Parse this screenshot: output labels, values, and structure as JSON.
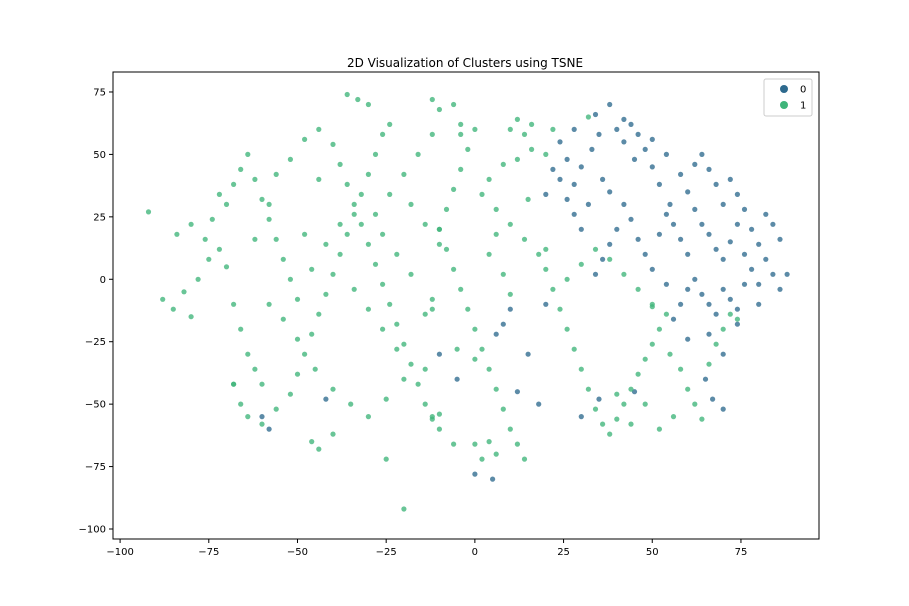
{
  "chart_data": {
    "type": "scatter",
    "title": "2D Visualization of Clusters using TSNE",
    "xlabel": "",
    "ylabel": "",
    "xlim": [
      -102,
      97
    ],
    "ylim": [
      -104,
      83
    ],
    "x_ticks": [
      -100,
      -75,
      -50,
      -25,
      0,
      25,
      50,
      75
    ],
    "y_ticks": [
      -100,
      -75,
      -50,
      -25,
      0,
      25,
      50,
      75
    ],
    "grid": false,
    "legend_position": "top-right",
    "series": [
      {
        "name": "0",
        "color": "#2e6a8e",
        "points": [
          [
            30,
            45
          ],
          [
            33,
            52
          ],
          [
            36,
            40
          ],
          [
            28,
            38
          ],
          [
            40,
            60
          ],
          [
            42,
            55
          ],
          [
            45,
            48
          ],
          [
            38,
            35
          ],
          [
            32,
            30
          ],
          [
            26,
            48
          ],
          [
            35,
            58
          ],
          [
            44,
            62
          ],
          [
            48,
            52
          ],
          [
            50,
            45
          ],
          [
            52,
            38
          ],
          [
            55,
            30
          ],
          [
            58,
            42
          ],
          [
            60,
            35
          ],
          [
            62,
            28
          ],
          [
            64,
            22
          ],
          [
            66,
            18
          ],
          [
            68,
            12
          ],
          [
            70,
            8
          ],
          [
            72,
            15
          ],
          [
            74,
            22
          ],
          [
            76,
            28
          ],
          [
            78,
            20
          ],
          [
            80,
            14
          ],
          [
            82,
            8
          ],
          [
            84,
            2
          ],
          [
            70,
            30
          ],
          [
            68,
            38
          ],
          [
            66,
            44
          ],
          [
            64,
            50
          ],
          [
            62,
            46
          ],
          [
            72,
            40
          ],
          [
            74,
            34
          ],
          [
            76,
            10
          ],
          [
            78,
            4
          ],
          [
            80,
            -2
          ],
          [
            60,
            10
          ],
          [
            58,
            16
          ],
          [
            56,
            22
          ],
          [
            54,
            26
          ],
          [
            52,
            18
          ],
          [
            62,
            0
          ],
          [
            64,
            -6
          ],
          [
            66,
            -10
          ],
          [
            68,
            -14
          ],
          [
            70,
            -4
          ],
          [
            72,
            -8
          ],
          [
            74,
            -12
          ],
          [
            76,
            -2
          ],
          [
            60,
            -4
          ],
          [
            58,
            -10
          ],
          [
            56,
            -16
          ],
          [
            54,
            -2
          ],
          [
            50,
            4
          ],
          [
            48,
            10
          ],
          [
            46,
            16
          ],
          [
            44,
            24
          ],
          [
            42,
            30
          ],
          [
            40,
            20
          ],
          [
            38,
            14
          ],
          [
            36,
            8
          ],
          [
            34,
            2
          ],
          [
            30,
            20
          ],
          [
            28,
            26
          ],
          [
            26,
            32
          ],
          [
            24,
            40
          ],
          [
            22,
            44
          ],
          [
            20,
            34
          ],
          [
            24,
            55
          ],
          [
            28,
            60
          ],
          [
            34,
            66
          ],
          [
            38,
            70
          ],
          [
            42,
            64
          ],
          [
            46,
            58
          ],
          [
            50,
            56
          ],
          [
            54,
            50
          ],
          [
            86,
            16
          ],
          [
            84,
            22
          ],
          [
            82,
            26
          ],
          [
            88,
            2
          ],
          [
            86,
            -4
          ],
          [
            80,
            -10
          ],
          [
            74,
            -18
          ],
          [
            66,
            -22
          ],
          [
            60,
            -24
          ],
          [
            70,
            -30
          ],
          [
            65,
            -40
          ],
          [
            67,
            -48
          ],
          [
            70,
            -52
          ],
          [
            20,
            -10
          ],
          [
            10,
            -12
          ],
          [
            8,
            -18
          ],
          [
            6,
            -22
          ],
          [
            15,
            -30
          ],
          [
            5,
            -80
          ],
          [
            0,
            -78
          ],
          [
            -5,
            -40
          ],
          [
            -10,
            -30
          ],
          [
            12,
            -45
          ],
          [
            18,
            -50
          ],
          [
            35,
            -48
          ],
          [
            45,
            -45
          ],
          [
            30,
            -55
          ],
          [
            -58,
            -60
          ],
          [
            -60,
            -55
          ],
          [
            -42,
            -48
          ]
        ]
      },
      {
        "name": "1",
        "color": "#3fb57a",
        "points": [
          [
            -92,
            27
          ],
          [
            -88,
            -8
          ],
          [
            -85,
            -12
          ],
          [
            -82,
            -5
          ],
          [
            -80,
            -15
          ],
          [
            -78,
            0
          ],
          [
            -75,
            8
          ],
          [
            -72,
            12
          ],
          [
            -70,
            5
          ],
          [
            -68,
            -10
          ],
          [
            -66,
            -20
          ],
          [
            -64,
            -30
          ],
          [
            -62,
            -36
          ],
          [
            -60,
            -42
          ],
          [
            -68,
            -42
          ],
          [
            -66,
            -50
          ],
          [
            -64,
            -55
          ],
          [
            -60,
            -58
          ],
          [
            -56,
            -52
          ],
          [
            -52,
            -46
          ],
          [
            -50,
            -38
          ],
          [
            -48,
            -30
          ],
          [
            -46,
            -22
          ],
          [
            -44,
            -14
          ],
          [
            -42,
            -6
          ],
          [
            -40,
            2
          ],
          [
            -38,
            10
          ],
          [
            -36,
            18
          ],
          [
            -34,
            26
          ],
          [
            -32,
            34
          ],
          [
            -30,
            42
          ],
          [
            -28,
            50
          ],
          [
            -26,
            58
          ],
          [
            -24,
            62
          ],
          [
            -36,
            74
          ],
          [
            -33,
            72
          ],
          [
            -30,
            70
          ],
          [
            -70,
            30
          ],
          [
            -68,
            38
          ],
          [
            -66,
            44
          ],
          [
            -64,
            50
          ],
          [
            -62,
            40
          ],
          [
            -60,
            32
          ],
          [
            -58,
            24
          ],
          [
            -56,
            16
          ],
          [
            -54,
            8
          ],
          [
            -52,
            0
          ],
          [
            -50,
            -8
          ],
          [
            -56,
            42
          ],
          [
            -52,
            48
          ],
          [
            -48,
            56
          ],
          [
            -44,
            60
          ],
          [
            -40,
            54
          ],
          [
            -38,
            46
          ],
          [
            -36,
            38
          ],
          [
            -34,
            30
          ],
          [
            -32,
            22
          ],
          [
            -30,
            14
          ],
          [
            -28,
            6
          ],
          [
            -26,
            -2
          ],
          [
            -24,
            -10
          ],
          [
            -22,
            -18
          ],
          [
            -20,
            -26
          ],
          [
            -18,
            -34
          ],
          [
            -16,
            -42
          ],
          [
            -14,
            -50
          ],
          [
            -12,
            -56
          ],
          [
            -10,
            -60
          ],
          [
            -20,
            -40
          ],
          [
            -25,
            -48
          ],
          [
            -30,
            -55
          ],
          [
            -35,
            -50
          ],
          [
            -40,
            -44
          ],
          [
            -45,
            -36
          ],
          [
            -46,
            -65
          ],
          [
            -44,
            -68
          ],
          [
            -40,
            -62
          ],
          [
            -25,
            -72
          ],
          [
            -20,
            -92
          ],
          [
            -12,
            -55
          ],
          [
            -10,
            20
          ],
          [
            -8,
            28
          ],
          [
            -6,
            36
          ],
          [
            -4,
            44
          ],
          [
            -2,
            52
          ],
          [
            0,
            60
          ],
          [
            -10,
            68
          ],
          [
            -12,
            72
          ],
          [
            -6,
            70
          ],
          [
            -4,
            62
          ],
          [
            -8,
            12
          ],
          [
            -6,
            4
          ],
          [
            -4,
            -4
          ],
          [
            -2,
            -12
          ],
          [
            0,
            -20
          ],
          [
            2,
            -28
          ],
          [
            4,
            -36
          ],
          [
            6,
            -44
          ],
          [
            8,
            -52
          ],
          [
            10,
            -60
          ],
          [
            12,
            -66
          ],
          [
            6,
            -70
          ],
          [
            2,
            -72
          ],
          [
            4,
            -65
          ],
          [
            14,
            -72
          ],
          [
            0,
            -66
          ],
          [
            -6,
            -66
          ],
          [
            -14,
            -14
          ],
          [
            -12,
            -8
          ],
          [
            -18,
            2
          ],
          [
            -22,
            10
          ],
          [
            -26,
            18
          ],
          [
            -28,
            26
          ],
          [
            -24,
            34
          ],
          [
            -20,
            42
          ],
          [
            -16,
            50
          ],
          [
            -12,
            58
          ],
          [
            -18,
            30
          ],
          [
            -14,
            22
          ],
          [
            -10,
            14
          ],
          [
            2,
            34
          ],
          [
            6,
            28
          ],
          [
            10,
            22
          ],
          [
            14,
            16
          ],
          [
            18,
            10
          ],
          [
            20,
            4
          ],
          [
            22,
            -4
          ],
          [
            24,
            -12
          ],
          [
            26,
            -20
          ],
          [
            28,
            -28
          ],
          [
            30,
            -36
          ],
          [
            32,
            -44
          ],
          [
            34,
            -52
          ],
          [
            36,
            -58
          ],
          [
            38,
            -62
          ],
          [
            40,
            -56
          ],
          [
            42,
            -50
          ],
          [
            44,
            -44
          ],
          [
            46,
            -38
          ],
          [
            48,
            -32
          ],
          [
            50,
            -26
          ],
          [
            52,
            -20
          ],
          [
            54,
            -14
          ],
          [
            50,
            -10
          ],
          [
            46,
            -4
          ],
          [
            42,
            2
          ],
          [
            38,
            8
          ],
          [
            34,
            12
          ],
          [
            30,
            6
          ],
          [
            26,
            0
          ],
          [
            10,
            60
          ],
          [
            12,
            64
          ],
          [
            14,
            58
          ],
          [
            16,
            52
          ],
          [
            8,
            46
          ],
          [
            4,
            40
          ],
          [
            6,
            18
          ],
          [
            4,
            10
          ],
          [
            8,
            2
          ],
          [
            10,
            -6
          ],
          [
            55,
            -30
          ],
          [
            58,
            -36
          ],
          [
            60,
            -44
          ],
          [
            62,
            -50
          ],
          [
            64,
            -56
          ],
          [
            56,
            -55
          ],
          [
            52,
            -60
          ],
          [
            48,
            -50
          ],
          [
            44,
            -58
          ],
          [
            40,
            -46
          ],
          [
            66,
            -34
          ],
          [
            68,
            -26
          ],
          [
            70,
            -20
          ],
          [
            72,
            -14
          ],
          [
            74,
            -16
          ],
          [
            -84,
            18
          ],
          [
            -80,
            22
          ],
          [
            -76,
            16
          ],
          [
            -74,
            24
          ],
          [
            -72,
            34
          ],
          [
            -58,
            -10
          ],
          [
            -54,
            -16
          ],
          [
            -50,
            -24
          ],
          [
            -46,
            4
          ],
          [
            -42,
            14
          ],
          [
            -38,
            22
          ],
          [
            -34,
            -4
          ],
          [
            -30,
            -12
          ],
          [
            -26,
            -20
          ],
          [
            -22,
            -28
          ],
          [
            -68,
            -42
          ],
          [
            -10,
            20
          ],
          [
            -10,
            -54
          ],
          [
            -12,
            -12
          ],
          [
            20,
            12
          ],
          [
            50,
            -11
          ],
          [
            15,
            32
          ],
          [
            -5,
            -28
          ],
          [
            0,
            -32
          ],
          [
            -14,
            -36
          ],
          [
            32,
            65
          ],
          [
            20,
            50
          ],
          [
            22,
            60
          ],
          [
            16,
            62
          ],
          [
            12,
            48
          ],
          [
            -4,
            58
          ],
          [
            -58,
            30
          ],
          [
            -62,
            16
          ],
          [
            -48,
            18
          ],
          [
            -44,
            40
          ]
        ]
      }
    ]
  }
}
